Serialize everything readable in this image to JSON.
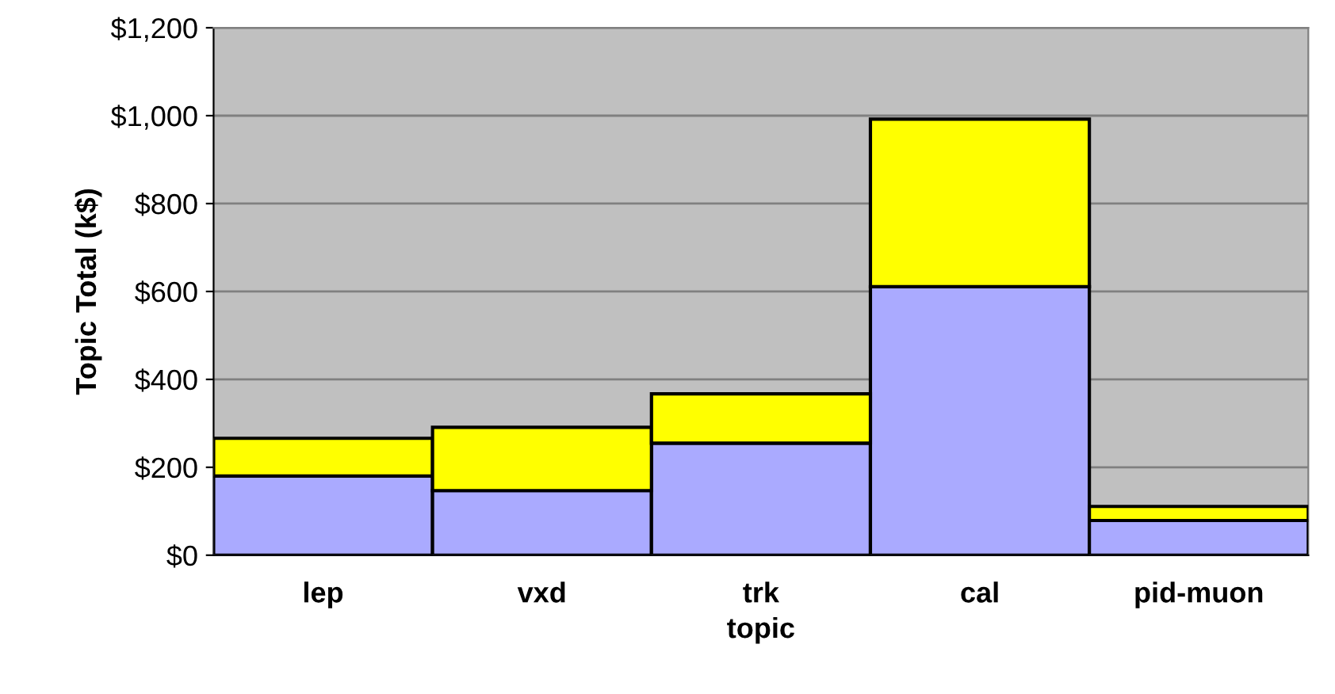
{
  "chart_data": {
    "type": "bar",
    "stacked": true,
    "xlabel": "topic",
    "ylabel": "Topic Total (k$)",
    "categories": [
      "lep",
      "vxd",
      "trk",
      "cal",
      "pid-muon"
    ],
    "series": [
      {
        "color": "#aaaaff",
        "values": [
          180,
          147,
          255,
          611,
          79
        ]
      },
      {
        "color": "#ffff00",
        "values": [
          86,
          144,
          112,
          381,
          32
        ]
      }
    ],
    "ylim": [
      0,
      1200
    ],
    "yticks": [
      {
        "value": 0,
        "label": "$0"
      },
      {
        "value": 200,
        "label": "$200"
      },
      {
        "value": 400,
        "label": "$400"
      },
      {
        "value": 600,
        "label": "$600"
      },
      {
        "value": 800,
        "label": "$800"
      },
      {
        "value": 1000,
        "label": "$1,000"
      },
      {
        "value": 1200,
        "label": "$1,200"
      }
    ],
    "grid": "y",
    "legend": false
  }
}
